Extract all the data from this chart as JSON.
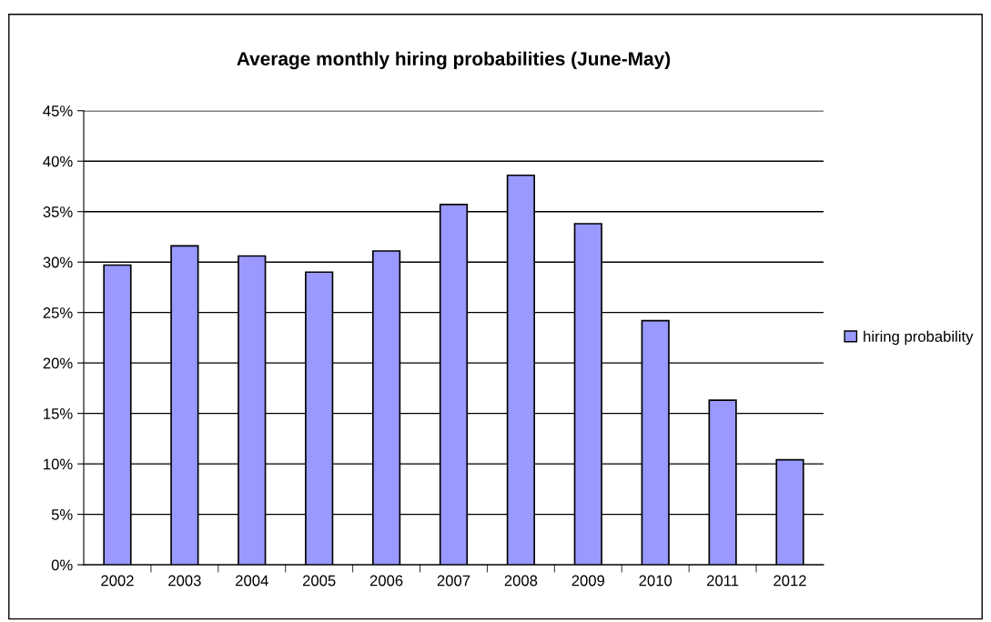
{
  "chart_data": {
    "type": "bar",
    "title": "Average monthly hiring probabilities (June-May)",
    "categories": [
      "2002",
      "2003",
      "2004",
      "2005",
      "2006",
      "2007",
      "2008",
      "2009",
      "2010",
      "2011",
      "2012"
    ],
    "series": [
      {
        "name": "hiring probability",
        "color": "#9999ff",
        "values": [
          29.7,
          31.6,
          30.6,
          29.0,
          31.1,
          35.7,
          38.6,
          33.8,
          24.2,
          16.3,
          10.4
        ]
      }
    ],
    "ylim": [
      0,
      45
    ],
    "yticks": [
      {
        "value": 0,
        "label": "0%"
      },
      {
        "value": 5,
        "label": "5%"
      },
      {
        "value": 10,
        "label": "10%"
      },
      {
        "value": 15,
        "label": "15%"
      },
      {
        "value": 20,
        "label": "20%"
      },
      {
        "value": 25,
        "label": "25%"
      },
      {
        "value": 30,
        "label": "30%"
      },
      {
        "value": 35,
        "label": "35%"
      },
      {
        "value": 40,
        "label": "40%"
      },
      {
        "value": 45,
        "label": "45%"
      }
    ],
    "grid": "y",
    "legend": "right"
  }
}
